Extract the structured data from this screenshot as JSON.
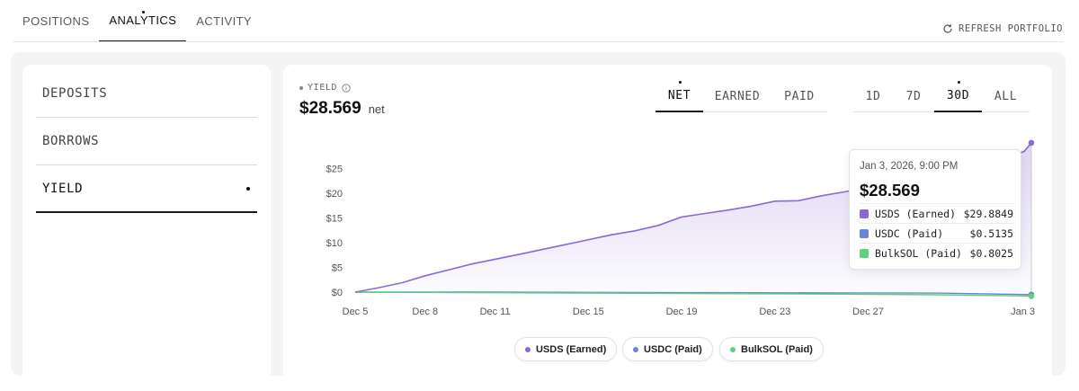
{
  "top_tabs": [
    {
      "label": "POSITIONS"
    },
    {
      "label": "ANALYTICS"
    },
    {
      "label": "ACTIVITY"
    }
  ],
  "refresh_label": "REFRESH PORTFOLIO",
  "side_menu": [
    {
      "label": "DEPOSITS"
    },
    {
      "label": "BORROWS"
    },
    {
      "label": "YIELD"
    }
  ],
  "metric": {
    "label": "YIELD",
    "value": "$28.569",
    "unit": "net"
  },
  "mode_tabs": [
    {
      "label": "NET"
    },
    {
      "label": "EARNED"
    },
    {
      "label": "PAID"
    }
  ],
  "range_tabs": [
    {
      "label": "1D"
    },
    {
      "label": "7D"
    },
    {
      "label": "30D"
    },
    {
      "label": "ALL"
    }
  ],
  "tooltip": {
    "date": "Jan 3, 2026, 9:00 PM",
    "value": "$28.569",
    "rows": [
      {
        "name": "USDS (Earned)",
        "value": "$29.8849",
        "color": "#8b68d8"
      },
      {
        "name": "USDC (Paid)",
        "value": "$0.5135",
        "color": "#6a85d6"
      },
      {
        "name": "BulkSOL (Paid)",
        "value": "$0.8025",
        "color": "#5dd17f"
      }
    ]
  },
  "chart_data": {
    "type": "area",
    "x": [
      "Dec 5",
      "Dec 8",
      "Dec 11",
      "Dec 15",
      "Dec 19",
      "Dec 23",
      "Dec 27",
      "Jan 3"
    ],
    "x_days": [
      0,
      3,
      6,
      10,
      14,
      18,
      22,
      29
    ],
    "y_ticks": [
      "$0",
      "$5",
      "$10",
      "$15",
      "$20",
      "$25"
    ],
    "ylim": [
      0,
      30
    ],
    "series": [
      {
        "name": "USDS (Earned)",
        "color": "#8b68d8",
        "points": [
          [
            0,
            0
          ],
          [
            1,
            0.9
          ],
          [
            2,
            1.9
          ],
          [
            3,
            3.3
          ],
          [
            5,
            5.7
          ],
          [
            7,
            7.6
          ],
          [
            9,
            9.6
          ],
          [
            11,
            11.6
          ],
          [
            12,
            12.4
          ],
          [
            13,
            13.5
          ],
          [
            14,
            15.2
          ],
          [
            15,
            15.9
          ],
          [
            16,
            16.6
          ],
          [
            17,
            17.4
          ],
          [
            18,
            18.4
          ],
          [
            19,
            18.5
          ],
          [
            20,
            19.5
          ],
          [
            21,
            20.3
          ],
          [
            22,
            21.2
          ],
          [
            23,
            22.3
          ],
          [
            24,
            23.2
          ],
          [
            25,
            23.8
          ],
          [
            26,
            24.6
          ],
          [
            27,
            25.7
          ],
          [
            28,
            27.1
          ],
          [
            28.7,
            28.5
          ],
          [
            29,
            30.2
          ]
        ]
      },
      {
        "name": "USDC (Paid)",
        "color": "#6a85d6",
        "points": [
          [
            0,
            0
          ],
          [
            5,
            0.0
          ],
          [
            10,
            -0.05
          ],
          [
            15,
            -0.1
          ],
          [
            20,
            -0.15
          ],
          [
            25,
            -0.2
          ],
          [
            29,
            -0.5
          ]
        ]
      },
      {
        "name": "BulkSOL (Paid)",
        "color": "#5dd17f",
        "points": [
          [
            0,
            0
          ],
          [
            5,
            -0.1
          ],
          [
            10,
            -0.2
          ],
          [
            15,
            -0.3
          ],
          [
            20,
            -0.4
          ],
          [
            25,
            -0.55
          ],
          [
            29,
            -0.8
          ]
        ]
      }
    ]
  }
}
